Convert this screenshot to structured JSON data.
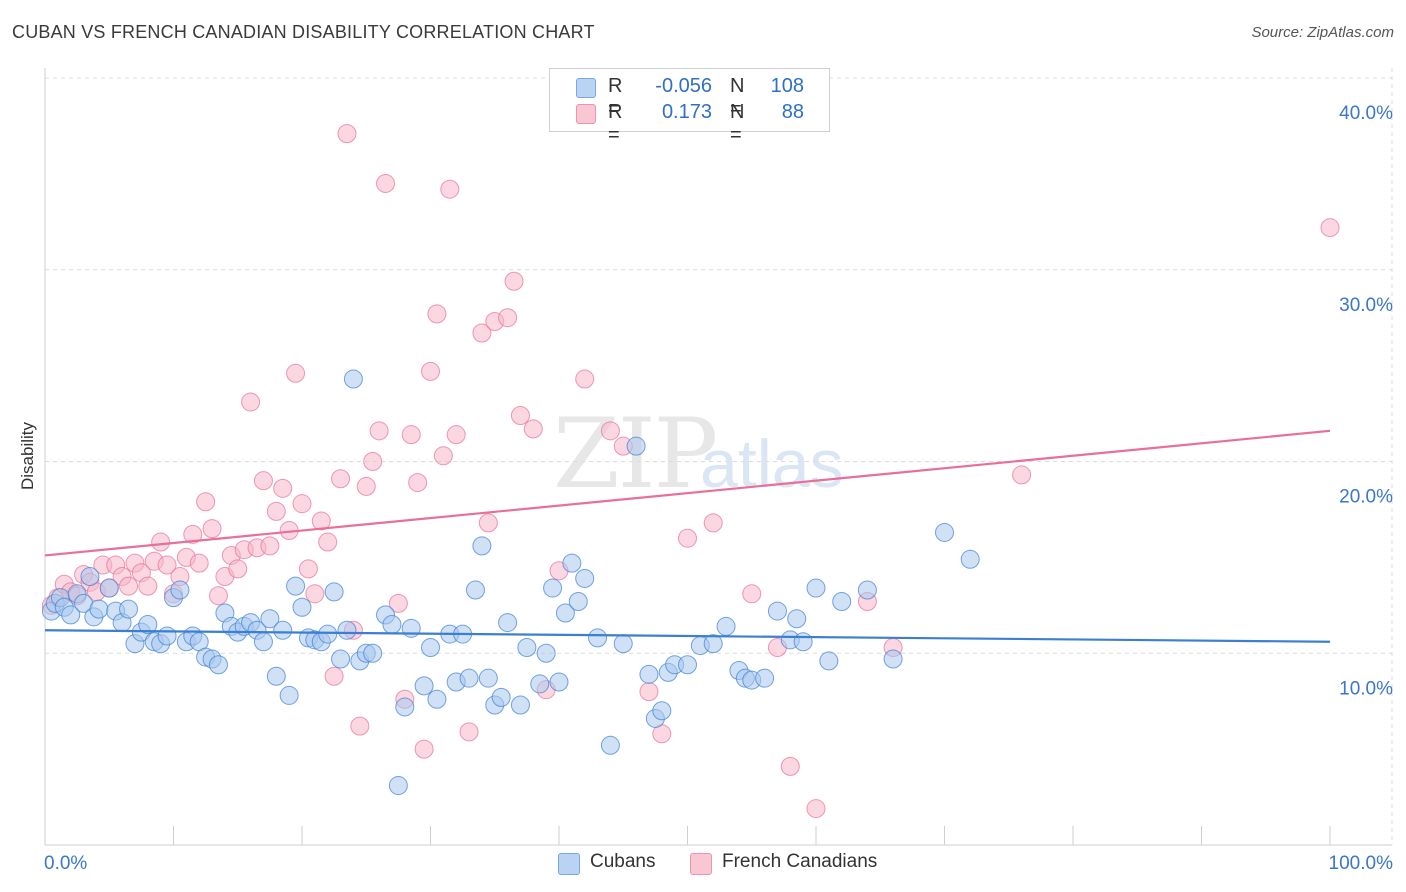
{
  "title": "CUBAN VS FRENCH CANADIAN DISABILITY CORRELATION CHART",
  "source": "Source: ZipAtlas.com",
  "watermark": {
    "zip": "ZIP",
    "atlas": "atlas"
  },
  "legend": {
    "rows": [
      {
        "r_label": "R =",
        "r_value": "-0.056",
        "n_label": "N =",
        "n_value": "108",
        "color": "#7aa7e0"
      },
      {
        "r_label": "R =",
        "r_value": "0.173",
        "n_label": "N =",
        "n_value": "88",
        "color": "#ec93ad"
      }
    ]
  },
  "bottom_legend": {
    "series_a": "Cubans",
    "series_b": "French Canadians"
  },
  "chart_data": {
    "type": "scatter",
    "title": "CUBAN VS FRENCH CANADIAN DISABILITY CORRELATION CHART",
    "xlabel": "",
    "ylabel": "Disability",
    "xlim": [
      0,
      100
    ],
    "ylim": [
      0,
      40
    ],
    "x_tick_labels": [
      "0.0%",
      "100.0%"
    ],
    "y_ticks": [
      10,
      20,
      30,
      40
    ],
    "y_tick_labels": [
      "10.0%",
      "20.0%",
      "30.0%",
      "40.0%"
    ],
    "grid": true,
    "legend_position": "top-center",
    "series": [
      {
        "name": "Cubans",
        "color": "#3a7fd4",
        "fill": "#aac8ef",
        "r": -0.056,
        "n": 108,
        "trend": {
          "x": [
            0,
            100
          ],
          "y": [
            11.2,
            10.6
          ]
        },
        "points": [
          [
            0.5,
            12.2
          ],
          [
            0.8,
            12.6
          ],
          [
            1.2,
            12.9
          ],
          [
            1.5,
            12.4
          ],
          [
            2.0,
            12.0
          ],
          [
            2.5,
            13.1
          ],
          [
            3.0,
            12.6
          ],
          [
            3.5,
            14.0
          ],
          [
            3.8,
            11.9
          ],
          [
            4.2,
            12.3
          ],
          [
            5.0,
            13.4
          ],
          [
            5.5,
            12.2
          ],
          [
            6.0,
            11.6
          ],
          [
            6.5,
            12.3
          ],
          [
            7.0,
            10.5
          ],
          [
            7.5,
            11.1
          ],
          [
            8.0,
            11.5
          ],
          [
            8.5,
            10.6
          ],
          [
            9.0,
            10.5
          ],
          [
            9.5,
            10.9
          ],
          [
            10.0,
            12.9
          ],
          [
            10.5,
            13.3
          ],
          [
            11.0,
            10.6
          ],
          [
            11.5,
            10.9
          ],
          [
            12.0,
            10.6
          ],
          [
            12.5,
            9.8
          ],
          [
            13.0,
            9.7
          ],
          [
            13.5,
            9.4
          ],
          [
            14.0,
            12.1
          ],
          [
            14.5,
            11.4
          ],
          [
            15.0,
            11.1
          ],
          [
            15.5,
            11.4
          ],
          [
            16.0,
            11.6
          ],
          [
            16.5,
            11.2
          ],
          [
            17.0,
            10.6
          ],
          [
            17.5,
            11.8
          ],
          [
            18.0,
            8.8
          ],
          [
            18.5,
            11.2
          ],
          [
            19.0,
            7.8
          ],
          [
            19.5,
            13.5
          ],
          [
            20.0,
            12.4
          ],
          [
            20.5,
            10.8
          ],
          [
            21.0,
            10.7
          ],
          [
            21.5,
            10.6
          ],
          [
            22.0,
            11.0
          ],
          [
            22.5,
            13.2
          ],
          [
            23.0,
            9.7
          ],
          [
            23.5,
            11.2
          ],
          [
            24.0,
            24.3
          ],
          [
            24.5,
            9.6
          ],
          [
            25.0,
            10.0
          ],
          [
            25.5,
            10.0
          ],
          [
            26.5,
            12.0
          ],
          [
            27.0,
            11.5
          ],
          [
            27.5,
            3.1
          ],
          [
            28.0,
            7.2
          ],
          [
            28.5,
            11.3
          ],
          [
            29.5,
            8.3
          ],
          [
            30.0,
            10.3
          ],
          [
            30.5,
            7.6
          ],
          [
            31.5,
            11.0
          ],
          [
            32.0,
            8.5
          ],
          [
            32.5,
            11.0
          ],
          [
            33.0,
            8.7
          ],
          [
            33.5,
            13.3
          ],
          [
            34.0,
            15.6
          ],
          [
            34.5,
            8.7
          ],
          [
            35.0,
            7.3
          ],
          [
            35.5,
            7.7
          ],
          [
            36.0,
            11.6
          ],
          [
            37.0,
            7.3
          ],
          [
            37.5,
            10.3
          ],
          [
            38.5,
            8.4
          ],
          [
            39.0,
            10.0
          ],
          [
            39.5,
            13.4
          ],
          [
            40.0,
            8.5
          ],
          [
            40.5,
            12.1
          ],
          [
            41.0,
            14.7
          ],
          [
            41.5,
            12.7
          ],
          [
            42.0,
            13.9
          ],
          [
            43.0,
            10.8
          ],
          [
            44.0,
            5.2
          ],
          [
            45.0,
            10.5
          ],
          [
            46.0,
            20.8
          ],
          [
            47.0,
            8.9
          ],
          [
            47.5,
            6.6
          ],
          [
            48.0,
            7.0
          ],
          [
            48.5,
            9.0
          ],
          [
            49.0,
            9.4
          ],
          [
            50.0,
            9.4
          ],
          [
            51.0,
            10.4
          ],
          [
            52.0,
            10.5
          ],
          [
            53.0,
            11.4
          ],
          [
            54.0,
            9.1
          ],
          [
            54.5,
            8.7
          ],
          [
            55.0,
            8.6
          ],
          [
            56.0,
            8.7
          ],
          [
            57.0,
            12.2
          ],
          [
            58.0,
            10.7
          ],
          [
            58.5,
            11.8
          ],
          [
            59.0,
            10.6
          ],
          [
            60.0,
            13.4
          ],
          [
            61.0,
            9.6
          ],
          [
            62.0,
            12.7
          ],
          [
            64.0,
            13.3
          ],
          [
            66.0,
            9.7
          ],
          [
            70.0,
            16.3
          ],
          [
            72.0,
            14.9
          ]
        ]
      },
      {
        "name": "French Canadians",
        "color": "#e86f98",
        "fill": "#f6b6c9",
        "r": 0.173,
        "n": 88,
        "trend": {
          "x": [
            0,
            100
          ],
          "y": [
            15.1,
            21.6
          ]
        },
        "points": [
          [
            0.5,
            12.5
          ],
          [
            1.0,
            12.9
          ],
          [
            1.5,
            13.6
          ],
          [
            2.0,
            13.2
          ],
          [
            2.5,
            13.0
          ],
          [
            3.0,
            14.1
          ],
          [
            3.5,
            13.7
          ],
          [
            4.0,
            13.2
          ],
          [
            4.5,
            14.6
          ],
          [
            5.0,
            13.4
          ],
          [
            5.5,
            14.6
          ],
          [
            6.0,
            14.0
          ],
          [
            6.5,
            13.5
          ],
          [
            7.0,
            14.7
          ],
          [
            7.5,
            14.2
          ],
          [
            8.0,
            13.5
          ],
          [
            8.5,
            14.8
          ],
          [
            9.0,
            15.8
          ],
          [
            9.5,
            14.6
          ],
          [
            10.0,
            13.1
          ],
          [
            10.5,
            14.0
          ],
          [
            11.0,
            15.0
          ],
          [
            11.5,
            16.2
          ],
          [
            12.0,
            14.7
          ],
          [
            12.5,
            17.9
          ],
          [
            13.0,
            16.5
          ],
          [
            13.5,
            13.0
          ],
          [
            14.0,
            14.0
          ],
          [
            14.5,
            15.1
          ],
          [
            15.0,
            14.4
          ],
          [
            15.5,
            15.4
          ],
          [
            16.0,
            23.1
          ],
          [
            16.5,
            15.5
          ],
          [
            17.0,
            19.0
          ],
          [
            17.5,
            15.6
          ],
          [
            18.0,
            17.4
          ],
          [
            18.5,
            18.6
          ],
          [
            19.0,
            16.4
          ],
          [
            19.5,
            24.6
          ],
          [
            20.0,
            17.8
          ],
          [
            20.5,
            14.4
          ],
          [
            21.0,
            13.1
          ],
          [
            21.5,
            16.9
          ],
          [
            22.0,
            15.8
          ],
          [
            22.5,
            8.8
          ],
          [
            23.0,
            19.1
          ],
          [
            23.5,
            37.1
          ],
          [
            24.0,
            11.2
          ],
          [
            24.5,
            6.2
          ],
          [
            25.0,
            18.7
          ],
          [
            25.5,
            20.0
          ],
          [
            26.0,
            21.6
          ],
          [
            26.5,
            34.5
          ],
          [
            27.5,
            12.6
          ],
          [
            28.0,
            7.6
          ],
          [
            28.5,
            21.4
          ],
          [
            29.0,
            18.9
          ],
          [
            29.5,
            5.0
          ],
          [
            30.0,
            24.7
          ],
          [
            30.5,
            27.7
          ],
          [
            31.0,
            20.3
          ],
          [
            31.5,
            34.2
          ],
          [
            32.0,
            21.4
          ],
          [
            33.0,
            5.9
          ],
          [
            34.0,
            26.7
          ],
          [
            34.5,
            16.8
          ],
          [
            35.0,
            27.3
          ],
          [
            36.0,
            27.5
          ],
          [
            36.5,
            29.4
          ],
          [
            37.0,
            22.4
          ],
          [
            38.0,
            21.7
          ],
          [
            39.0,
            8.1
          ],
          [
            40.0,
            14.3
          ],
          [
            42.0,
            24.3
          ],
          [
            44.0,
            21.6
          ],
          [
            45.0,
            20.8
          ],
          [
            47.0,
            8.0
          ],
          [
            48.0,
            5.8
          ],
          [
            50.0,
            16.0
          ],
          [
            52.0,
            16.8
          ],
          [
            55.0,
            13.1
          ],
          [
            57.0,
            10.3
          ],
          [
            58.0,
            4.1
          ],
          [
            60.0,
            1.9
          ],
          [
            64.0,
            12.7
          ],
          [
            66.0,
            10.3
          ],
          [
            76.0,
            19.3
          ],
          [
            100.0,
            32.2
          ]
        ]
      }
    ]
  }
}
